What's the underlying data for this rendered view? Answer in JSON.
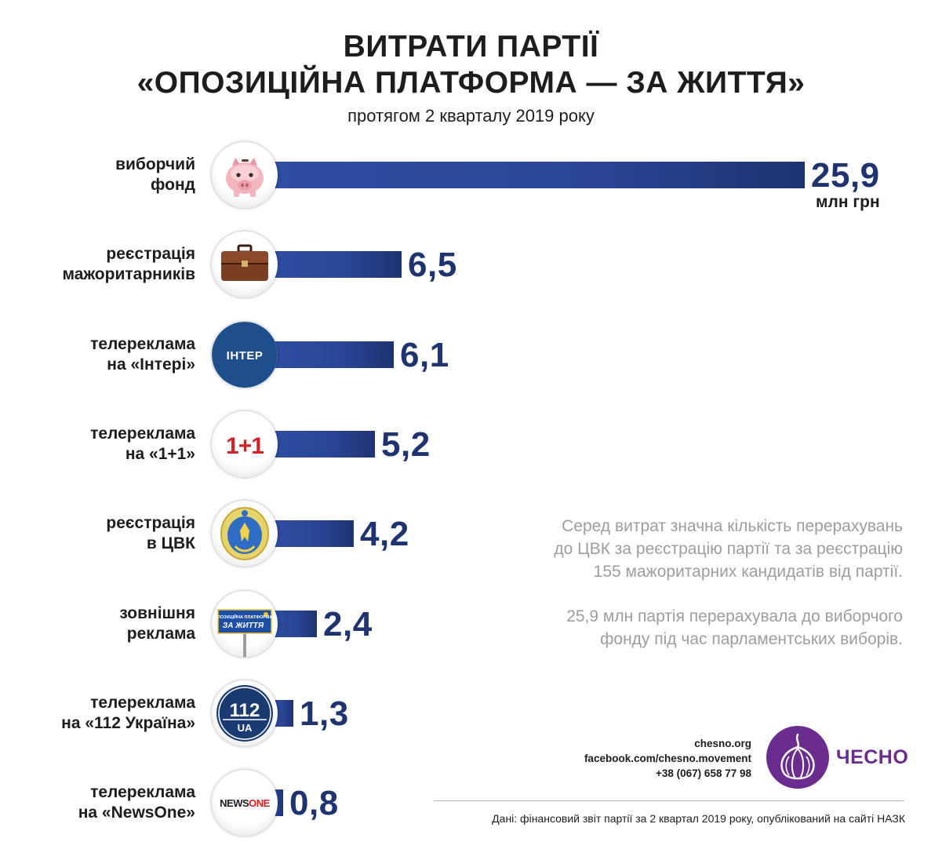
{
  "header": {
    "title_line1": "ВИТРАТИ ПАРТІЇ",
    "title_line2": "«ОПОЗИЦІЙНА ПЛАТФОРМА — ЗА ЖИТТЯ»",
    "subtitle": "протягом 2 кварталу 2019 року"
  },
  "chart_data": {
    "type": "bar",
    "orientation": "horizontal",
    "unit": "млн грн",
    "categories": [
      [
        "виборчий",
        "фонд"
      ],
      [
        "реєстрація",
        "мажоритарників"
      ],
      [
        "телереклама",
        "на «Інтері»"
      ],
      [
        "телереклама",
        "на «1+1»"
      ],
      [
        "реєстрація",
        "в ЦВК"
      ],
      [
        "зовнішня",
        "реклама"
      ],
      [
        "телереклама",
        "на «112 Україна»"
      ],
      [
        "телереклама",
        "на «NewsOne»"
      ]
    ],
    "values": [
      25.9,
      6.5,
      6.1,
      5.2,
      4.2,
      2.4,
      1.3,
      0.8
    ],
    "value_labels": [
      "25,9",
      "6,5",
      "6,1",
      "5,2",
      "4,2",
      "2,4",
      "1,3",
      "0,8"
    ],
    "icons": [
      "piggy-bank-icon",
      "briefcase-icon",
      "inter-logo-icon",
      "one-plus-one-logo-icon",
      "cvk-emblem-icon",
      "billboard-icon",
      "channel-112-logo-icon",
      "newsone-logo-icon"
    ],
    "icon_texts": [
      "",
      "",
      "ІНТЕР",
      "1+1",
      "",
      "ОПОЗИЦІЙНА ПЛАТФОРМА ЗА ЖИТТЯ",
      "112 UA",
      "NEWSONE"
    ],
    "colors": {
      "bar_start": "#2f4ea2",
      "bar_end": "#1e3370",
      "value": "#1e3370"
    }
  },
  "notes": {
    "para1_line1": "Серед витрат значна кількість перерахувань",
    "para1_line2": "до ЦВК за реєстрацію партії та за реєстрацію",
    "para1_line3": "155 мажоритарних кандидатів від партії.",
    "para2_line1": "25,9 млн партія перерахувала до виборчого",
    "para2_line2": "фонду під час парламентських виборів."
  },
  "contacts": {
    "site": "chesno.org",
    "facebook": "facebook.com/chesno.movement",
    "phone": "+38 (067) 658 77 98"
  },
  "brand": {
    "name": "ЧЕСНО",
    "color": "#6a2d8f"
  },
  "source": "Дані: фінансовий звіт партії за 2 квартал 2019 року, опублікований на сайті НАЗК"
}
